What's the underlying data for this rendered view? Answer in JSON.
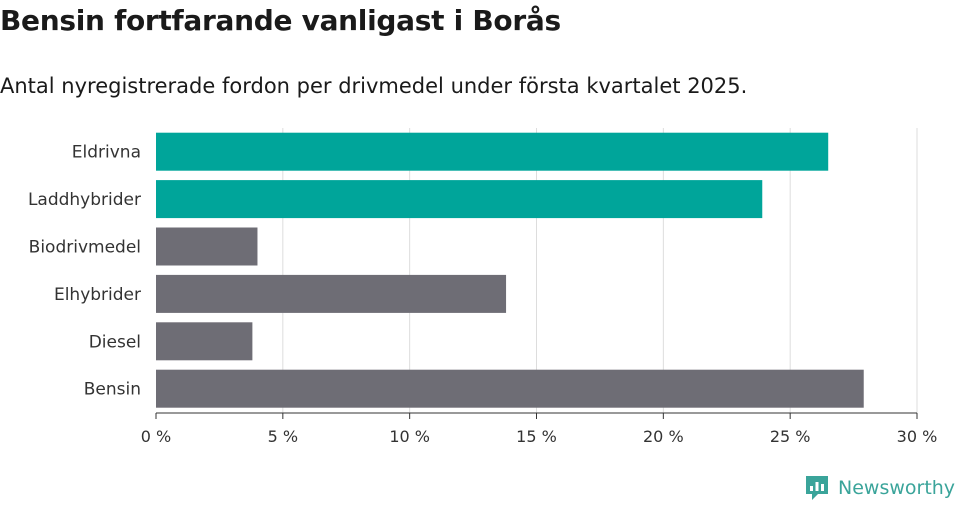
{
  "title": "Bensin fortfarande vanligast i Borås",
  "subtitle": "Antal nyregistrerade fordon per drivmedel under första kvartalet 2025.",
  "brand": {
    "name": "Newsworthy",
    "icon": "newsworthy-logo-icon"
  },
  "colors": {
    "highlight": "#00a59a",
    "default": "#6e6d75",
    "grid": "#dddddd",
    "axis": "#333333"
  },
  "chart_data": {
    "type": "bar",
    "orientation": "horizontal",
    "categories": [
      "Eldrivna",
      "Laddhybrider",
      "Biodrivmedel",
      "Elhybrider",
      "Diesel",
      "Bensin"
    ],
    "values": [
      26.5,
      23.9,
      4.0,
      13.8,
      3.8,
      27.9
    ],
    "highlighted": [
      true,
      true,
      false,
      false,
      false,
      false
    ],
    "xlim": [
      0,
      30
    ],
    "xticks": [
      0,
      5,
      10,
      15,
      20,
      25,
      30
    ],
    "xtick_labels": [
      "0 %",
      "5 %",
      "10 %",
      "15 %",
      "20 %",
      "25 %",
      "30 %"
    ],
    "grid": true
  }
}
